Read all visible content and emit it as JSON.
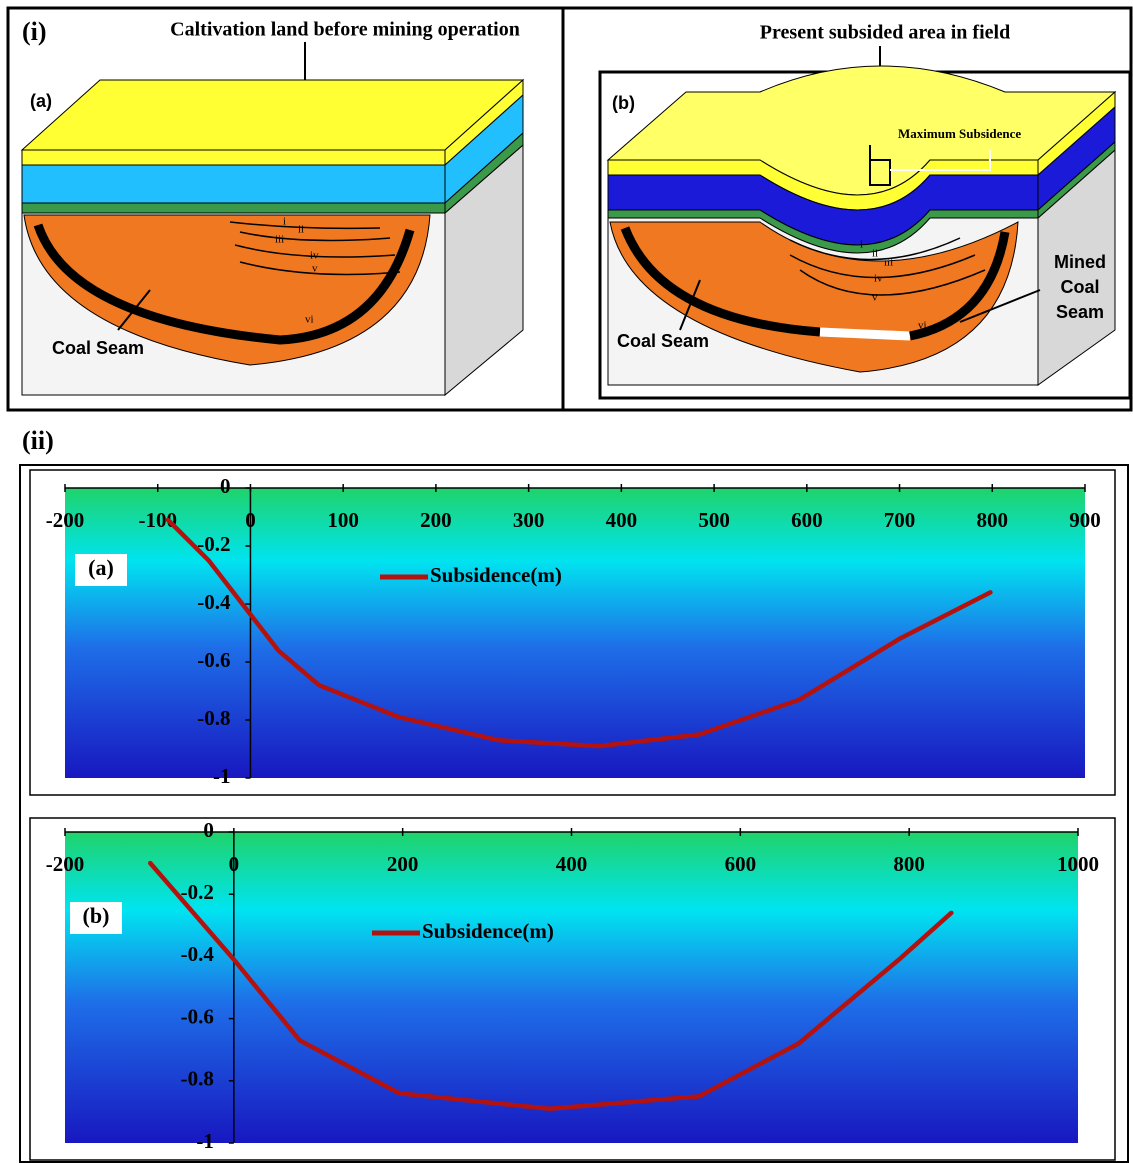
{
  "panel_i": {
    "label": "(i)",
    "a": {
      "label": "(a)",
      "title": "Caltivation land before mining operation",
      "coal_seam": "Coal Seam",
      "layers": [
        "i",
        "ii",
        "iii",
        "iv",
        "v",
        "vi"
      ]
    },
    "b": {
      "label": "(b)",
      "title": "Present subsided area in field",
      "max_subsidence": "Maximum Subsidence",
      "mined_coal_seam": [
        "Mined",
        "Coal",
        "Seam"
      ],
      "coal_seam": "Coal Seam",
      "layers": [
        "i",
        "ii",
        "iii",
        "iv",
        "v",
        "vi"
      ]
    }
  },
  "panel_ii": {
    "label": "(ii)"
  },
  "chart_data": [
    {
      "type": "line",
      "label": "(a)",
      "x": [
        -89,
        -45,
        30,
        74,
        160,
        268,
        376,
        484,
        592,
        700,
        798
      ],
      "series": [
        {
          "name": "Subsidence(m)",
          "color": "#b3120f",
          "values": [
            -0.11,
            -0.25,
            -0.56,
            -0.68,
            -0.79,
            -0.87,
            -0.89,
            -0.85,
            -0.73,
            -0.52,
            -0.36
          ]
        }
      ],
      "xlim": [
        -200,
        900
      ],
      "xticks": [
        -200,
        -100,
        0,
        100,
        200,
        300,
        400,
        500,
        600,
        700,
        800,
        900
      ],
      "ylim": [
        -1,
        0
      ],
      "yticks": [
        0,
        -0.2,
        -0.4,
        -0.6,
        -0.8,
        -1
      ],
      "grid": false
    },
    {
      "type": "line",
      "label": "(b)",
      "x": [
        -99,
        0,
        78,
        196,
        374,
        551,
        669,
        788,
        850
      ],
      "series": [
        {
          "name": "Subsidence(m)",
          "color": "#b3120f",
          "values": [
            -0.1,
            -0.41,
            -0.67,
            -0.84,
            -0.89,
            -0.85,
            -0.68,
            -0.41,
            -0.26
          ]
        }
      ],
      "xlim": [
        -200,
        1000
      ],
      "xticks": [
        -200,
        0,
        200,
        400,
        600,
        800,
        1000
      ],
      "ylim": [
        -1,
        0
      ],
      "yticks": [
        0,
        -0.2,
        -0.4,
        -0.6,
        -0.8,
        -1
      ],
      "grid": false
    }
  ]
}
